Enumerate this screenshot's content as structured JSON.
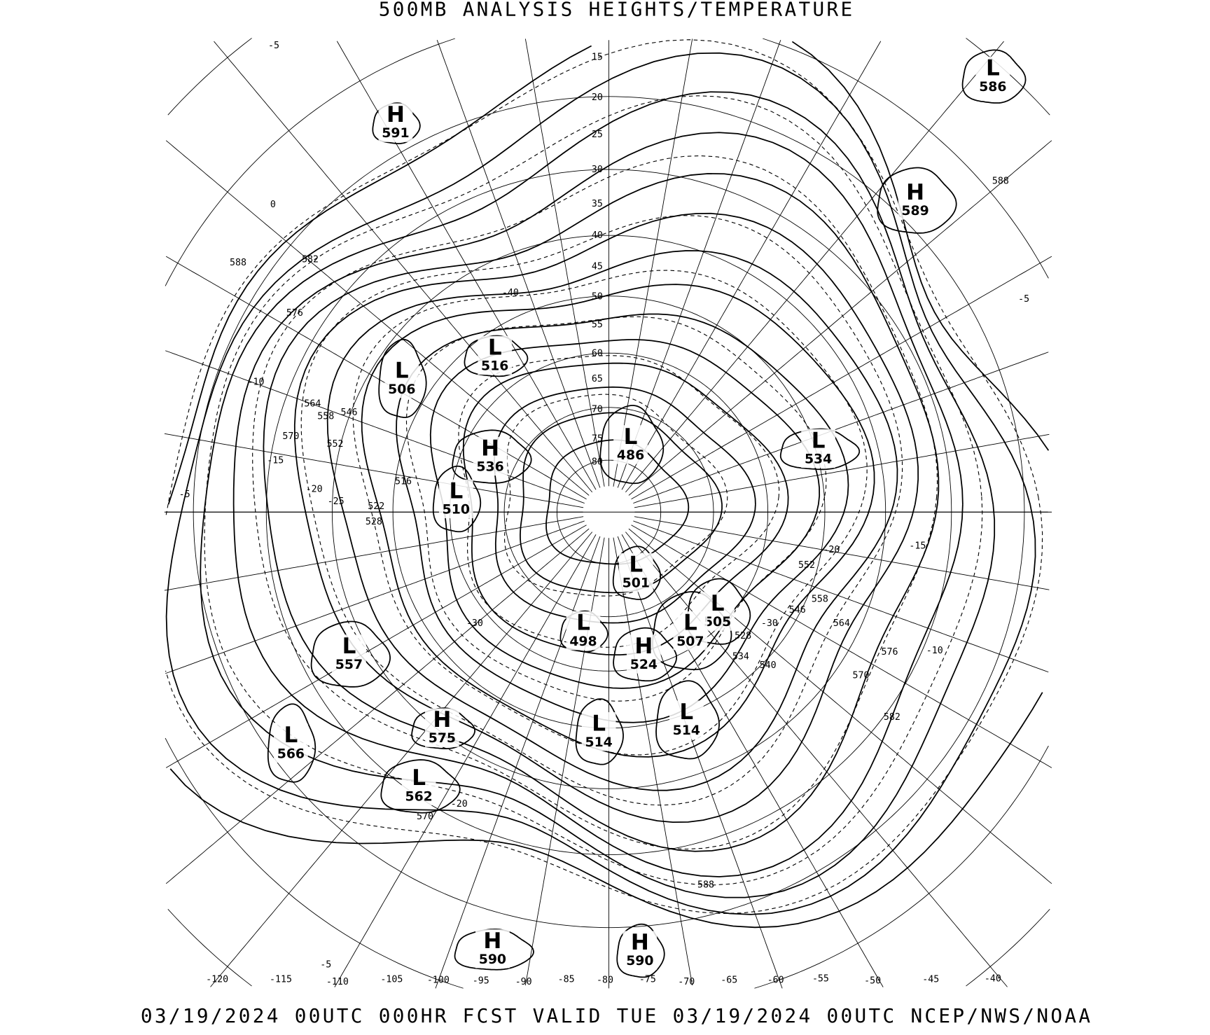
{
  "title": "500MB ANALYSIS  HEIGHTS/TEMPERATURE",
  "footer": "03/19/2024 00UTC 000HR FCST VALID TUE 03/19/2024 00UTC  NCEP/NWS/NOAA",
  "pressure_centers": [
    {
      "type": "H",
      "value": "591"
    },
    {
      "type": "L",
      "value": "586"
    },
    {
      "type": "H",
      "value": "589"
    },
    {
      "type": "L",
      "value": "506"
    },
    {
      "type": "L",
      "value": "516"
    },
    {
      "type": "H",
      "value": "536"
    },
    {
      "type": "L",
      "value": "510"
    },
    {
      "type": "L",
      "value": "486"
    },
    {
      "type": "L",
      "value": "534"
    },
    {
      "type": "L",
      "value": "501"
    },
    {
      "type": "L",
      "value": "505"
    },
    {
      "type": "L",
      "value": "507"
    },
    {
      "type": "L",
      "value": "498"
    },
    {
      "type": "H",
      "value": "524"
    },
    {
      "type": "L",
      "value": "557"
    },
    {
      "type": "L",
      "value": "566"
    },
    {
      "type": "H",
      "value": "575"
    },
    {
      "type": "L",
      "value": "562"
    },
    {
      "type": "L",
      "value": "514"
    },
    {
      "type": "L",
      "value": "514"
    },
    {
      "type": "H",
      "value": "590"
    },
    {
      "type": "H",
      "value": "590"
    }
  ],
  "longitude_labels": [
    "-120",
    "-115",
    "-110",
    "-105",
    "-100",
    "-95",
    "-90",
    "-85",
    "-80",
    "-75",
    "-70",
    "-65",
    "-60",
    "-55",
    "-50",
    "-45",
    "-40"
  ],
  "latitude_labels": [
    "15",
    "20",
    "25",
    "30",
    "35",
    "40",
    "45",
    "50",
    "55",
    "60",
    "65",
    "70",
    "75",
    "80"
  ],
  "height_labels": [
    "588",
    "582",
    "576",
    "570",
    "564",
    "558",
    "552",
    "546",
    "588",
    "582",
    "576",
    "570",
    "564",
    "558",
    "552",
    "546",
    "540",
    "534",
    "528",
    "588",
    "570",
    "522",
    "528",
    "516"
  ],
  "temperature_labels": [
    "-5",
    "0",
    "-10",
    "-15",
    "-5",
    "-20",
    "-25",
    "-40",
    "-30",
    "-20",
    "-5",
    "-15",
    "-20",
    "-10",
    "-30",
    "-5"
  ]
}
